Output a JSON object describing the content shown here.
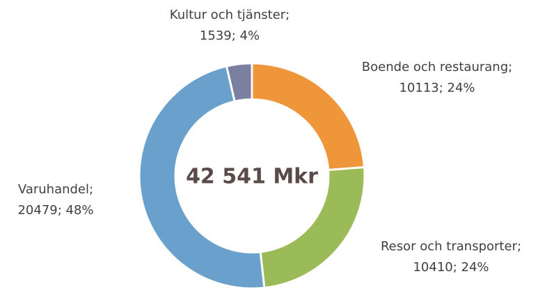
{
  "chart_data": {
    "type": "donut",
    "center_label": "42 541 Mkr",
    "categories": [
      "Boende och restaurang;",
      "Resor och transporter;",
      "Varuhandel;",
      "Kultur och tjänster;"
    ],
    "values": [
      10113,
      10410,
      20479,
      1539
    ],
    "value_labels": [
      "10113; 24%",
      "10410; 24%",
      "20479; 48%",
      "1539; 4%"
    ],
    "colors": [
      "#f0963a",
      "#9bbb59",
      "#6aa1cc",
      "#7b7fa0"
    ]
  }
}
